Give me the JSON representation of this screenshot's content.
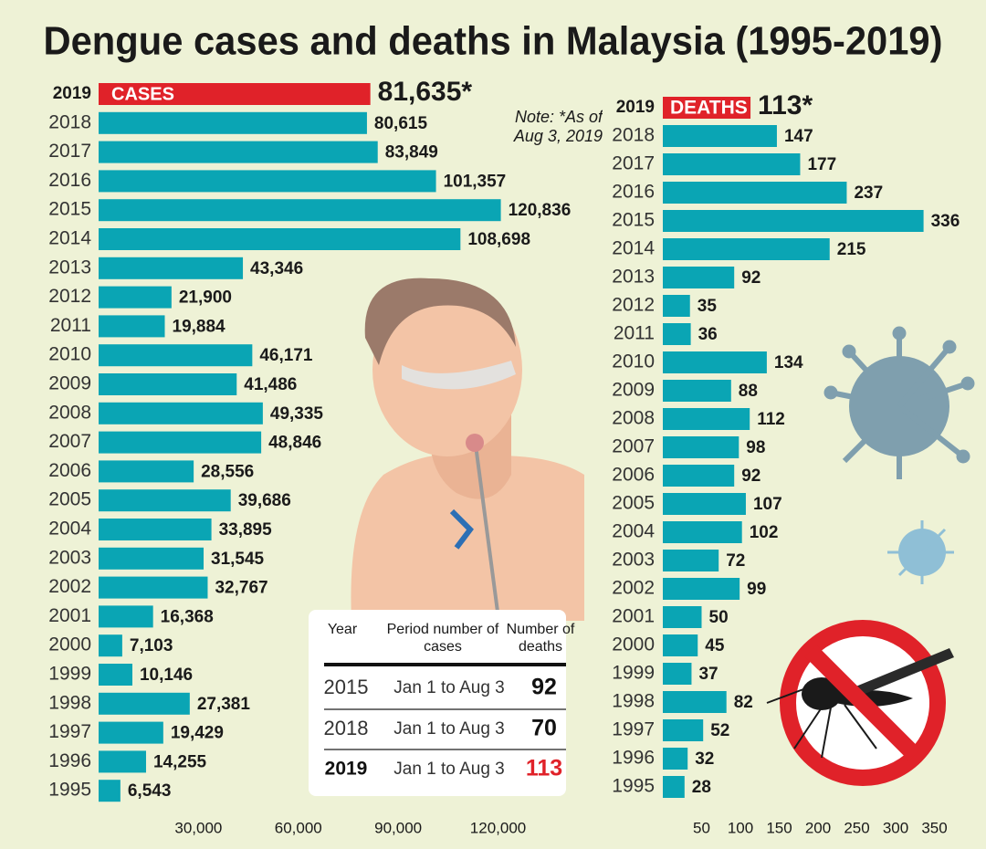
{
  "title": "Dengue cases and deaths in Malaysia (1995-2019)",
  "chart_data": [
    {
      "type": "bar",
      "orientation": "horizontal",
      "note": "Note: *As of Aug 3, 2019",
      "categories": [
        "2019",
        "2018",
        "2017",
        "2016",
        "2015",
        "2014",
        "2013",
        "2012",
        "2011",
        "2010",
        "2009",
        "2008",
        "2007",
        "2006",
        "2005",
        "2004",
        "2003",
        "2002",
        "2001",
        "2000",
        "1999",
        "1998",
        "1997",
        "1996",
        "1995"
      ],
      "series": [
        {
          "name": "CASES",
          "values": [
            81635,
            80615,
            83849,
            101357,
            120836,
            108698,
            43346,
            21900,
            19884,
            46171,
            41486,
            49335,
            48846,
            28556,
            39686,
            33895,
            31545,
            32767,
            16368,
            7103,
            10146,
            27381,
            19429,
            14255,
            6543
          ],
          "value_labels": [
            "81,635*",
            "80,615",
            "83,849",
            "101,357",
            "120,836",
            "108,698",
            "43,346",
            "21,900",
            "19,884",
            "46,171",
            "41,486",
            "49,335",
            "48,846",
            "28,556",
            "39,686",
            "33,895",
            "31,545",
            "32,767",
            "16,368",
            "7,103",
            "10,146",
            "27,381",
            "19,429",
            "14,255",
            "6,543"
          ],
          "colors": [
            "#e02229",
            "#0aa5b4",
            "#0aa5b4",
            "#0aa5b4",
            "#0aa5b4",
            "#0aa5b4",
            "#0aa5b4",
            "#0aa5b4",
            "#0aa5b4",
            "#0aa5b4",
            "#0aa5b4",
            "#0aa5b4",
            "#0aa5b4",
            "#0aa5b4",
            "#0aa5b4",
            "#0aa5b4",
            "#0aa5b4",
            "#0aa5b4",
            "#0aa5b4",
            "#0aa5b4",
            "#0aa5b4",
            "#0aa5b4",
            "#0aa5b4",
            "#0aa5b4",
            "#0aa5b4"
          ]
        }
      ],
      "xlim": [
        0,
        130000
      ],
      "xticks": [
        {
          "value": 30000,
          "label": "30,000"
        },
        {
          "value": 60000,
          "label": "60,000"
        },
        {
          "value": 90000,
          "label": "90,000"
        },
        {
          "value": 120000,
          "label": "120,000"
        }
      ],
      "grid": false
    },
    {
      "type": "bar",
      "orientation": "horizontal",
      "categories": [
        "2019",
        "2018",
        "2017",
        "2016",
        "2015",
        "2014",
        "2013",
        "2012",
        "2011",
        "2010",
        "2009",
        "2008",
        "2007",
        "2006",
        "2005",
        "2004",
        "2003",
        "2002",
        "2001",
        "2000",
        "1999",
        "1998",
        "1997",
        "1996",
        "1995"
      ],
      "series": [
        {
          "name": "DEATHS",
          "values": [
            113,
            147,
            177,
            237,
            336,
            215,
            92,
            35,
            36,
            134,
            88,
            112,
            98,
            92,
            107,
            102,
            72,
            99,
            50,
            45,
            37,
            82,
            52,
            32,
            28
          ],
          "value_labels": [
            "113*",
            "147",
            "177",
            "237",
            "336",
            "215",
            "92",
            "35",
            "36",
            "134",
            "88",
            "112",
            "98",
            "92",
            "107",
            "102",
            "72",
            "99",
            "50",
            "45",
            "37",
            "82",
            "52",
            "32",
            "28"
          ],
          "colors": [
            "#e02229",
            "#0aa5b4",
            "#0aa5b4",
            "#0aa5b4",
            "#0aa5b4",
            "#0aa5b4",
            "#0aa5b4",
            "#0aa5b4",
            "#0aa5b4",
            "#0aa5b4",
            "#0aa5b4",
            "#0aa5b4",
            "#0aa5b4",
            "#0aa5b4",
            "#0aa5b4",
            "#0aa5b4",
            "#0aa5b4",
            "#0aa5b4",
            "#0aa5b4",
            "#0aa5b4",
            "#0aa5b4",
            "#0aa5b4",
            "#0aa5b4",
            "#0aa5b4",
            "#0aa5b4"
          ]
        }
      ],
      "xlim": [
        0,
        360
      ],
      "xticks": [
        50,
        100,
        150,
        200,
        250,
        300,
        350
      ],
      "grid": false
    }
  ],
  "table": {
    "columns": [
      "Year",
      "Period number of cases",
      "Number of deaths"
    ],
    "rows": [
      [
        "2015",
        "Jan 1 to Aug 3",
        92
      ],
      [
        "2018",
        "Jan 1 to Aug 3",
        70
      ],
      [
        "2019",
        "Jan 1 to Aug 3",
        113
      ]
    ]
  }
}
